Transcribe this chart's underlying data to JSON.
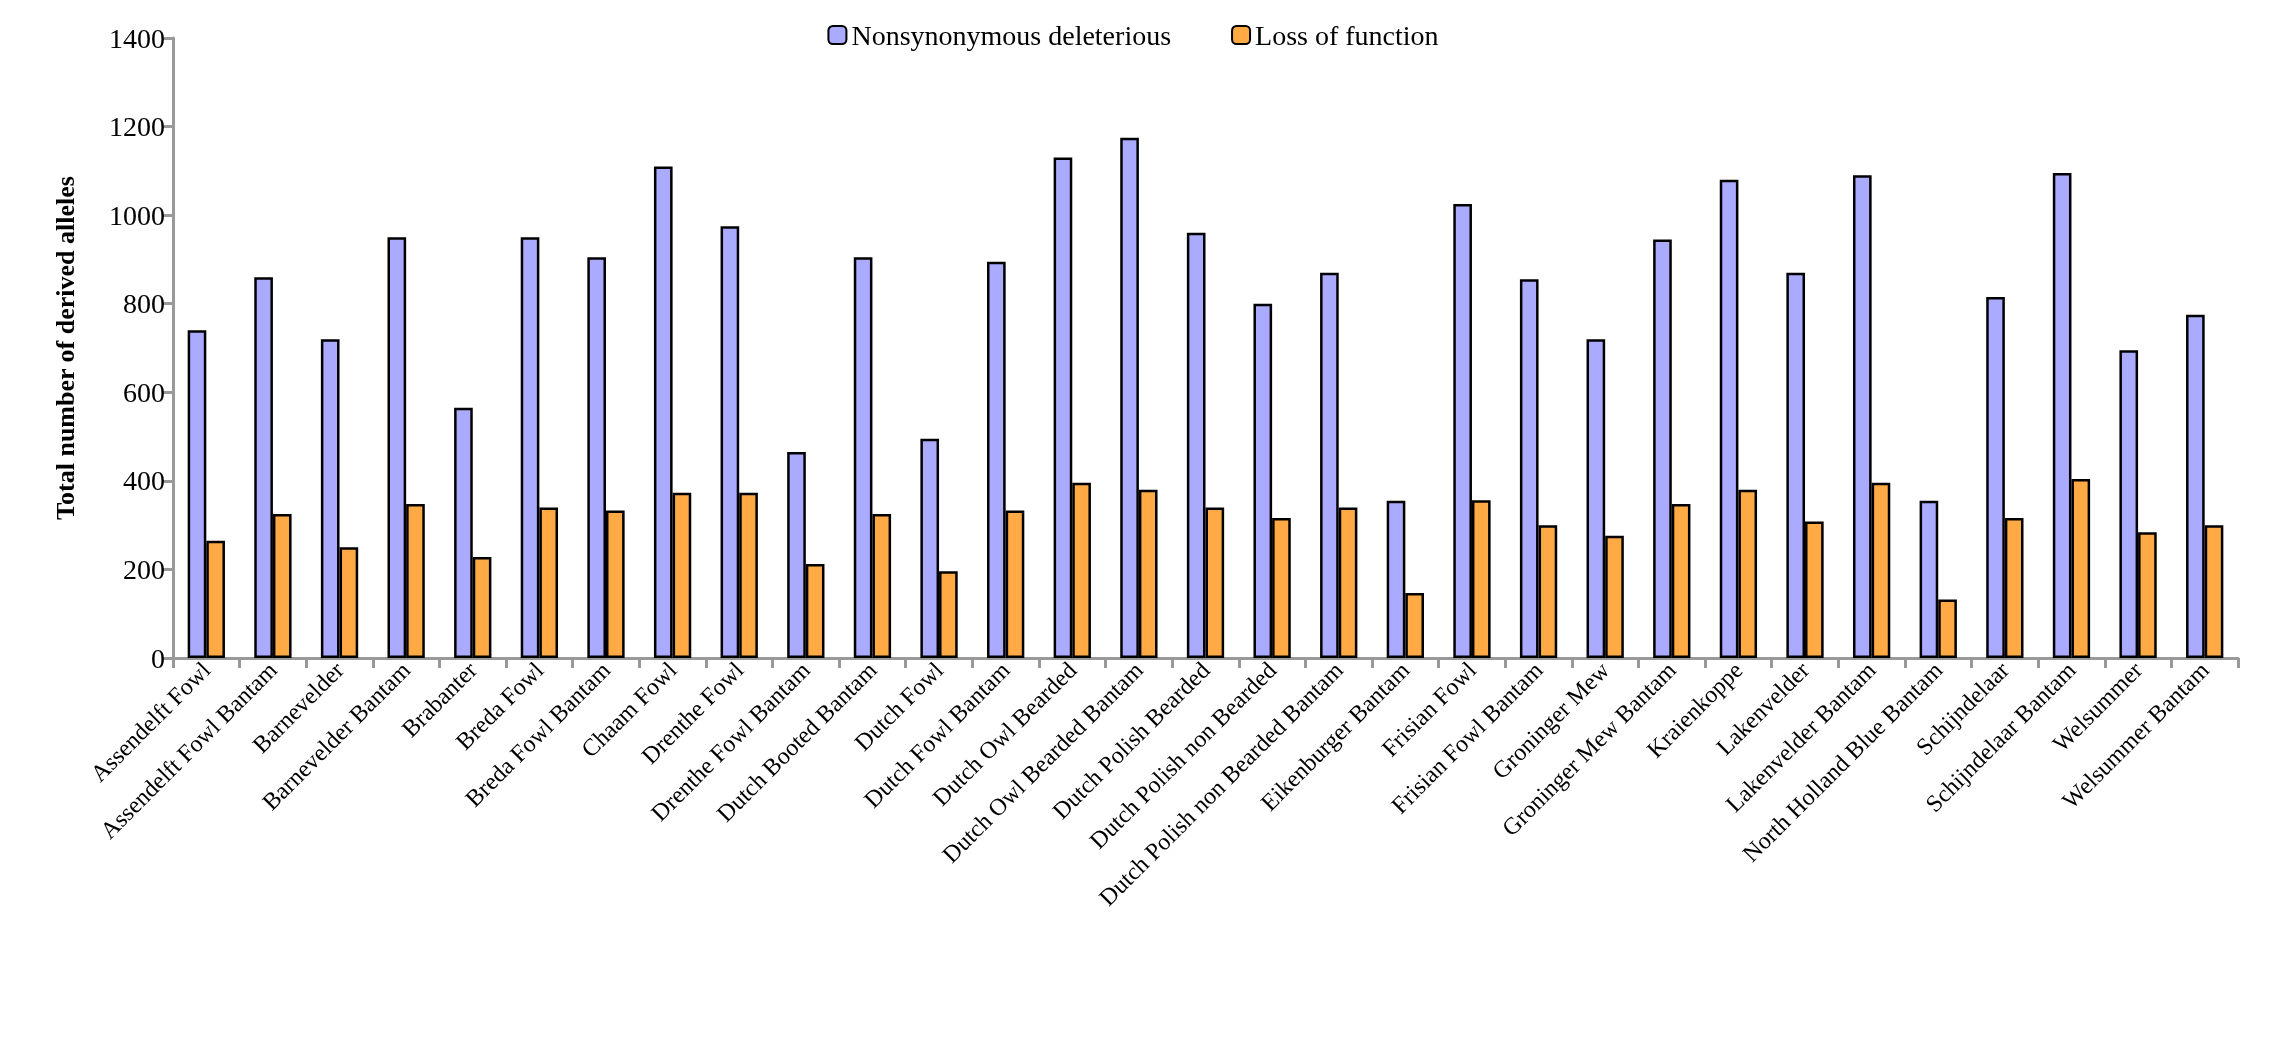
{
  "chart_data": {
    "type": "bar",
    "ylabel": "Total number of derived alleles",
    "categories": [
      "Assendelft Fowl",
      "Assendelft Fowl Bantam",
      "Barnevelder",
      "Barnevelder Bantam",
      "Brabanter",
      "Breda Fowl",
      "Breda Fowl Bantam",
      "Chaam Fowl",
      "Drenthe Fowl",
      "Drenthe Fowl Bantam",
      "Dutch Booted Bantam",
      "Dutch Fowl",
      "Dutch Fowl Bantam",
      "Dutch Owl Bearded",
      "Dutch Owl Bearded Bantam",
      "Dutch Polish Bearded",
      "Dutch Polish non Bearded",
      "Dutch Polish non Bearded Bantam",
      "Eikenburger Bantam",
      "Frisian Fowl",
      "Frisian Fowl Bantam",
      "Groninger Mew",
      "Groninger Mew Bantam",
      "Kraienkoppe",
      "Lakenvelder",
      "Lakenvelder Bantam",
      "North Holland Blue Bantam",
      "Schijndelaar",
      "Schijndelaar Bantam",
      "Welsummer",
      "Welsummer Bantam"
    ],
    "series": [
      {
        "name": "Nonsynonymous deleterious",
        "color": "#aaaaff",
        "values": [
          740,
          860,
          720,
          950,
          565,
          950,
          905,
          1110,
          975,
          465,
          905,
          495,
          895,
          1130,
          1175,
          960,
          800,
          870,
          355,
          1025,
          855,
          720,
          945,
          1080,
          870,
          1090,
          355,
          815,
          1095,
          695,
          775
        ]
      },
      {
        "name": "Loss of function",
        "color": "#ffaa44",
        "values": [
          265,
          325,
          250,
          348,
          228,
          340,
          333,
          373,
          373,
          212,
          325,
          196,
          333,
          396,
          380,
          340,
          316,
          340,
          147,
          356,
          300,
          276,
          348,
          380,
          308,
          396,
          132,
          316,
          404,
          284,
          300
        ]
      }
    ],
    "ylim": [
      0,
      1400
    ],
    "yticks": [
      0,
      200,
      400,
      600,
      800,
      1000,
      1200,
      1400
    ],
    "grid": false,
    "legend": "top"
  }
}
